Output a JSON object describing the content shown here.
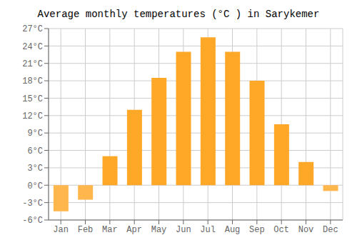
{
  "chart_data": {
    "type": "bar",
    "title": "Average monthly temperatures (°C ) in Sarykemer",
    "categories": [
      "Jan",
      "Feb",
      "Mar",
      "Apr",
      "May",
      "Jun",
      "Jul",
      "Aug",
      "Sep",
      "Oct",
      "Nov",
      "Dec"
    ],
    "values": [
      -4.5,
      -2.5,
      5.0,
      13.0,
      18.5,
      23.0,
      25.5,
      23.0,
      18.0,
      10.5,
      4.0,
      -1.0
    ],
    "colors": [
      "#FFB74D",
      "#FFB74D",
      "#FFA726",
      "#FFA726",
      "#FFA726",
      "#FFA726",
      "#FFA726",
      "#FFA726",
      "#FFA726",
      "#FFA726",
      "#FFA726",
      "#FFB74D"
    ],
    "ylim": [
      -6,
      27
    ],
    "yticks": [
      {
        "value": -6,
        "label": "-6°C"
      },
      {
        "value": -3,
        "label": "-3°C"
      },
      {
        "value": 0,
        "label": "0°C"
      },
      {
        "value": 3,
        "label": "3°C"
      },
      {
        "value": 6,
        "label": "6°C"
      },
      {
        "value": 9,
        "label": "9°C"
      },
      {
        "value": 12,
        "label": "12°C"
      },
      {
        "value": 15,
        "label": "15°C"
      },
      {
        "value": 18,
        "label": "18°C"
      },
      {
        "value": 21,
        "label": "21°C"
      },
      {
        "value": 24,
        "label": "24°C"
      },
      {
        "value": 27,
        "label": "27°C"
      }
    ],
    "grid": true
  }
}
